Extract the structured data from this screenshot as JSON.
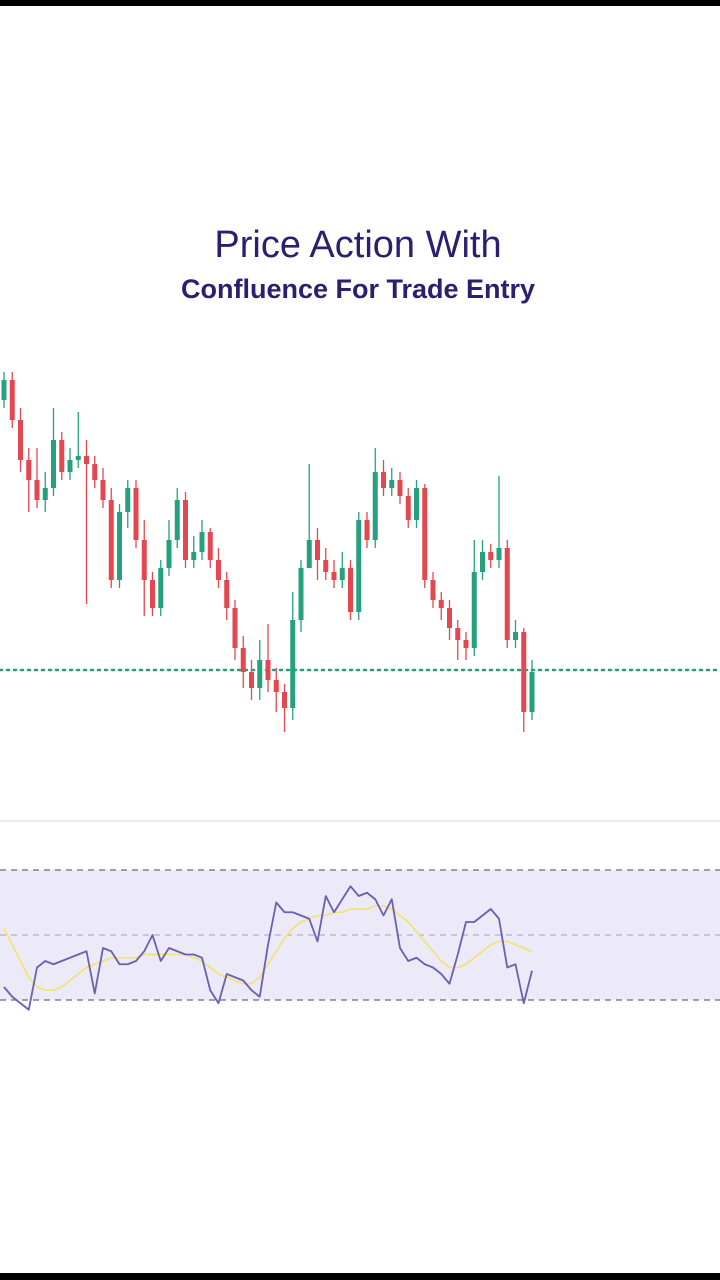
{
  "chart_data": [
    {
      "type": "candlestick",
      "title": "Price Action With",
      "subtitle": "Confluence For Trade Entry",
      "open": [
        90,
        95,
        85,
        75,
        70,
        65,
        68,
        80,
        72,
        75,
        76,
        74,
        70,
        65,
        45,
        62,
        68,
        55,
        45,
        38,
        48,
        55,
        65,
        50,
        52,
        57,
        50,
        45,
        38,
        28,
        22,
        18,
        25,
        20,
        17,
        13,
        35,
        48,
        55,
        50,
        47,
        45,
        48,
        37,
        60,
        55,
        72,
        68,
        70,
        66,
        60,
        68,
        45,
        40,
        38,
        33,
        30,
        28,
        47,
        52,
        50,
        53,
        30,
        32,
        12
      ],
      "high": [
        97,
        97,
        88,
        78,
        78,
        72,
        88,
        82,
        78,
        87,
        80,
        76,
        73,
        68,
        64,
        70,
        70,
        60,
        47,
        50,
        60,
        68,
        67,
        56,
        60,
        58,
        53,
        47,
        40,
        31,
        25,
        30,
        34,
        23,
        19,
        42,
        50,
        74,
        58,
        53,
        50,
        52,
        50,
        62,
        62,
        78,
        75,
        73,
        72,
        68,
        70,
        69,
        47,
        42,
        40,
        35,
        32,
        55,
        55,
        54,
        71,
        55,
        35,
        33,
        25
      ],
      "low": [
        88,
        83,
        72,
        62,
        63,
        62,
        66,
        70,
        70,
        73,
        39,
        68,
        63,
        43,
        43,
        58,
        53,
        36,
        36,
        36,
        46,
        53,
        48,
        48,
        50,
        48,
        43,
        35,
        25,
        18,
        15,
        15,
        17,
        12,
        7,
        10,
        32,
        48,
        45,
        45,
        43,
        43,
        35,
        35,
        53,
        53,
        66,
        66,
        64,
        58,
        58,
        43,
        38,
        35,
        30,
        25,
        25,
        26,
        45,
        48,
        48,
        28,
        28,
        7,
        10
      ],
      "close": [
        95,
        85,
        75,
        70,
        65,
        68,
        80,
        72,
        75,
        76,
        74,
        70,
        65,
        45,
        62,
        68,
        55,
        45,
        38,
        48,
        55,
        65,
        50,
        52,
        57,
        50,
        45,
        38,
        28,
        22,
        18,
        25,
        20,
        17,
        13,
        35,
        48,
        55,
        50,
        47,
        45,
        48,
        37,
        60,
        55,
        72,
        68,
        70,
        66,
        60,
        68,
        45,
        40,
        38,
        33,
        30,
        28,
        47,
        52,
        50,
        53,
        30,
        32,
        12,
        22
      ],
      "up_color": "#26a17e",
      "down_color": "#e3474f",
      "ylim": [
        0,
        100
      ],
      "support_level": 22.5,
      "support_color": "#2a9d6f"
    },
    {
      "type": "line",
      "series": [
        {
          "color": "#6a5fb0",
          "values": [
            34,
            31,
            29,
            27,
            40,
            42,
            41,
            42,
            43,
            44,
            45,
            32,
            46,
            45,
            41,
            41,
            42,
            45,
            50,
            42,
            46,
            45,
            44,
            44,
            43,
            33,
            29,
            38,
            37,
            36,
            33,
            31,
            47,
            60,
            57,
            57,
            56,
            55,
            48,
            62,
            57,
            61,
            65,
            62,
            63,
            61,
            56,
            61,
            46,
            42,
            43,
            41,
            40,
            38,
            35,
            44,
            54,
            54,
            56,
            58,
            55,
            40,
            41,
            29,
            39
          ]
        },
        {
          "color": "#f2e36b",
          "values": [
            52,
            47,
            42,
            37,
            34,
            33,
            33,
            34,
            36,
            38,
            40,
            41,
            42,
            43,
            43,
            43,
            43,
            44,
            44,
            44,
            44,
            44,
            44,
            43,
            42,
            40,
            38,
            37,
            36,
            35,
            35,
            37,
            41,
            45,
            49,
            52,
            54,
            55,
            56,
            56,
            57,
            57,
            58,
            58,
            58,
            59,
            59,
            58,
            56,
            54,
            51,
            48,
            45,
            42,
            40,
            40,
            41,
            43,
            45,
            47,
            48,
            48,
            47,
            46,
            45
          ]
        }
      ],
      "ylim": [
        20,
        80
      ],
      "levels": [
        70,
        50,
        30
      ],
      "band": [
        30,
        70
      ],
      "band_color": "#ece9f8"
    }
  ]
}
